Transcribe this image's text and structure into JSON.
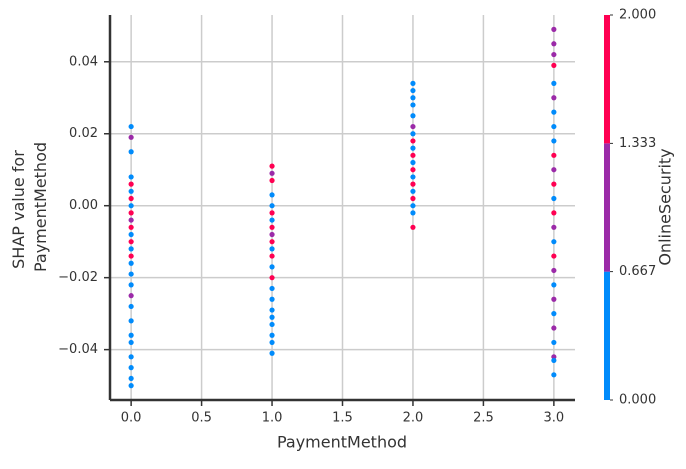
{
  "chart_data": {
    "type": "scatter",
    "xlabel": "PaymentMethod",
    "ylabel": [
      "SHAP value for",
      "PaymentMethod"
    ],
    "colorbar_label": "OnlineSecurity",
    "xlim": [
      -0.15,
      3.15
    ],
    "ylim": [
      -0.054,
      0.053
    ],
    "xticks": [
      {
        "value": 0,
        "label": "0.0"
      },
      {
        "value": 0.5,
        "label": "0.5"
      },
      {
        "value": 1,
        "label": "1.0"
      },
      {
        "value": 1.5,
        "label": "1.5"
      },
      {
        "value": 2,
        "label": "2.0"
      },
      {
        "value": 2.5,
        "label": "2.5"
      },
      {
        "value": 3,
        "label": "3.0"
      }
    ],
    "yticks": [
      {
        "value": -0.04,
        "label": "−0.04"
      },
      {
        "value": -0.02,
        "label": "−0.02"
      },
      {
        "value": 0,
        "label": "0.00"
      },
      0.02,
      0.04
    ],
    "clim": [
      0,
      2
    ],
    "cticks": [
      {
        "value": 0,
        "label": "0.000"
      },
      0.667,
      1.333,
      {
        "value": 2,
        "label": "2.000"
      }
    ],
    "cbar_colors": [
      "#008bfb",
      "#9b2aa8",
      "#ff0052"
    ],
    "grid": true,
    "x": [
      0,
      0,
      0,
      0,
      0,
      0,
      0,
      0,
      0,
      0,
      0,
      0,
      0,
      0,
      0,
      0,
      0,
      0,
      0,
      0,
      0,
      0,
      0,
      0,
      0,
      0,
      0,
      1,
      1,
      1,
      1,
      1,
      1,
      1,
      1,
      1,
      1,
      1,
      1,
      1,
      1,
      1,
      1,
      1,
      1,
      1,
      1,
      1,
      1,
      2,
      2,
      2,
      2,
      2,
      2,
      2,
      2,
      2,
      2,
      2,
      2,
      2,
      2,
      2,
      2,
      2,
      2,
      2,
      3,
      3,
      3,
      3,
      3,
      3,
      3,
      3,
      3,
      3,
      3,
      3,
      3,
      3,
      3,
      3,
      3,
      3,
      3,
      3,
      3,
      3,
      3,
      3,
      3,
      3
    ],
    "y": [
      0.022,
      0.019,
      0.015,
      0.008,
      0.006,
      0.004,
      0.002,
      0.0,
      -0.002,
      -0.004,
      -0.006,
      -0.008,
      -0.01,
      -0.012,
      -0.014,
      -0.016,
      -0.019,
      -0.022,
      -0.025,
      -0.028,
      -0.032,
      -0.036,
      -0.038,
      -0.042,
      -0.045,
      -0.048,
      -0.05,
      0.011,
      0.009,
      0.007,
      0.003,
      0.0,
      -0.002,
      -0.004,
      -0.006,
      -0.008,
      -0.01,
      -0.012,
      -0.014,
      -0.017,
      -0.02,
      -0.023,
      -0.026,
      -0.029,
      -0.033,
      -0.036,
      -0.038,
      -0.041,
      -0.031,
      0.034,
      0.032,
      0.03,
      0.028,
      0.025,
      0.022,
      0.02,
      0.018,
      0.016,
      0.014,
      0.012,
      0.01,
      0.008,
      0.006,
      0.004,
      0.002,
      0.0,
      -0.002,
      -0.006,
      0.049,
      0.045,
      0.042,
      0.039,
      0.034,
      0.03,
      0.026,
      0.022,
      0.018,
      0.014,
      0.01,
      0.006,
      0.002,
      -0.002,
      -0.006,
      -0.01,
      -0.014,
      -0.018,
      -0.022,
      -0.026,
      -0.03,
      -0.034,
      -0.038,
      -0.042,
      -0.043,
      -0.047
    ],
    "c": [
      0,
      1,
      0,
      0,
      2,
      0,
      2,
      0,
      2,
      1,
      2,
      0,
      2,
      0,
      2,
      0,
      0,
      0,
      1,
      0,
      0,
      0,
      0,
      0,
      0,
      0,
      0,
      2,
      1,
      2,
      0,
      0,
      2,
      0,
      2,
      1,
      2,
      0,
      2,
      0,
      2,
      0,
      0,
      0,
      0,
      0,
      0,
      0,
      0,
      0,
      0,
      0,
      0,
      0,
      1,
      0,
      2,
      0,
      2,
      0,
      2,
      0,
      2,
      0,
      2,
      0,
      0,
      2,
      1,
      1,
      1,
      2,
      0,
      1,
      0,
      0,
      0,
      2,
      1,
      2,
      0,
      2,
      1,
      0,
      2,
      1,
      0,
      1,
      0,
      1,
      0,
      1,
      0,
      0
    ]
  }
}
